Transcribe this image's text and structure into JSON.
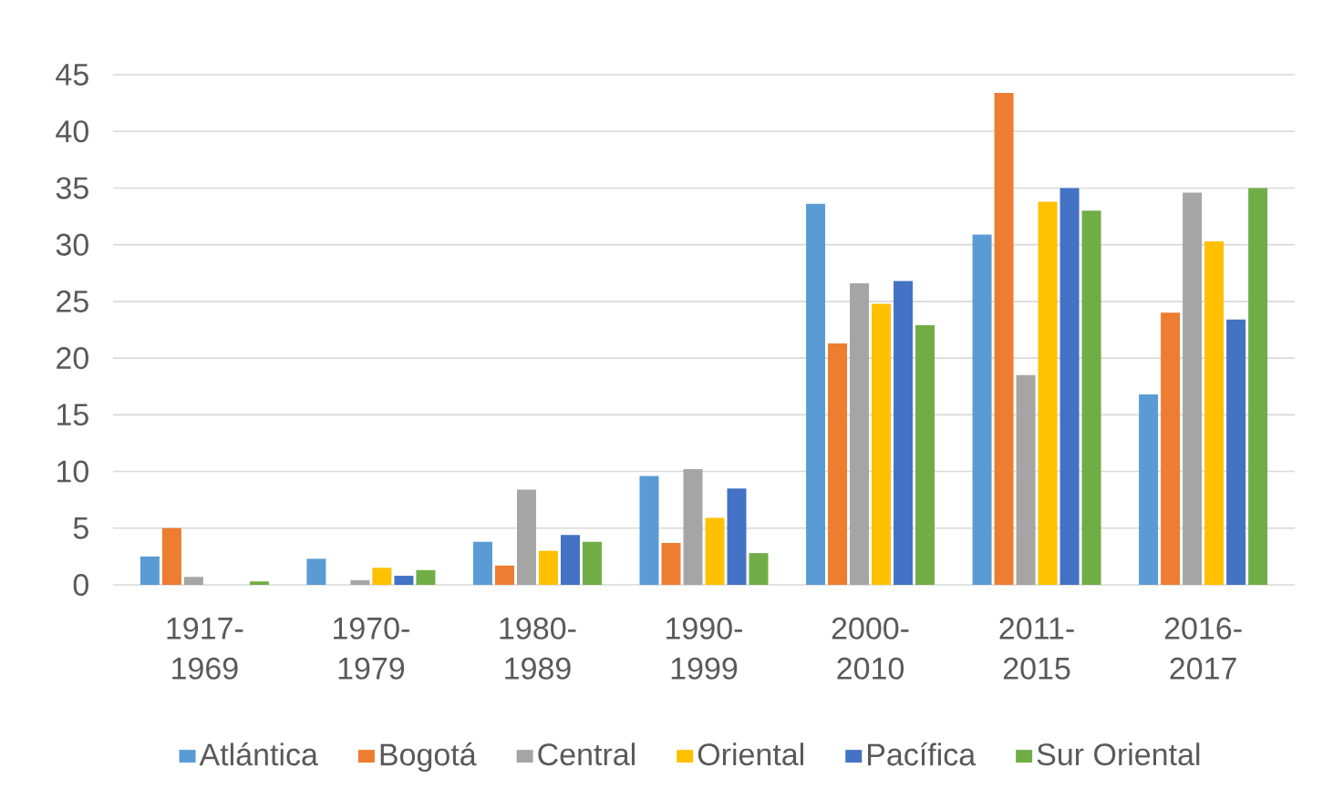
{
  "chart_data": {
    "type": "bar",
    "categories": [
      "1917-1969",
      "1970-1979",
      "1980-1989",
      "1990-1999",
      "2000-2010",
      "2011-2015",
      "2016-2017"
    ],
    "series": [
      {
        "name": "Atlántica",
        "color": "#5b9bd5",
        "values": [
          2.5,
          2.3,
          3.8,
          9.6,
          33.6,
          30.9,
          16.8
        ]
      },
      {
        "name": "Bogotá",
        "color": "#ed7d31",
        "values": [
          5,
          0,
          1.7,
          3.7,
          21.3,
          43.4,
          24
        ]
      },
      {
        "name": "Central",
        "color": "#a5a5a5",
        "values": [
          0.7,
          0.4,
          8.4,
          10.2,
          26.6,
          18.5,
          34.6
        ]
      },
      {
        "name": "Oriental",
        "color": "#ffc000",
        "values": [
          0,
          1.5,
          3,
          5.9,
          24.8,
          33.8,
          30.3
        ]
      },
      {
        "name": "Pacífica",
        "color": "#4472c4",
        "values": [
          0,
          0.8,
          4.4,
          8.5,
          26.8,
          35,
          23.4
        ]
      },
      {
        "name": "Sur Oriental",
        "color": "#70ad47",
        "values": [
          0.3,
          1.3,
          3.8,
          2.8,
          22.9,
          33,
          35
        ]
      }
    ],
    "ylim": [
      0,
      45
    ],
    "yticks": [
      0,
      5,
      10,
      15,
      20,
      25,
      30,
      35,
      40,
      45
    ],
    "grid": "y",
    "legend": "bottom"
  }
}
